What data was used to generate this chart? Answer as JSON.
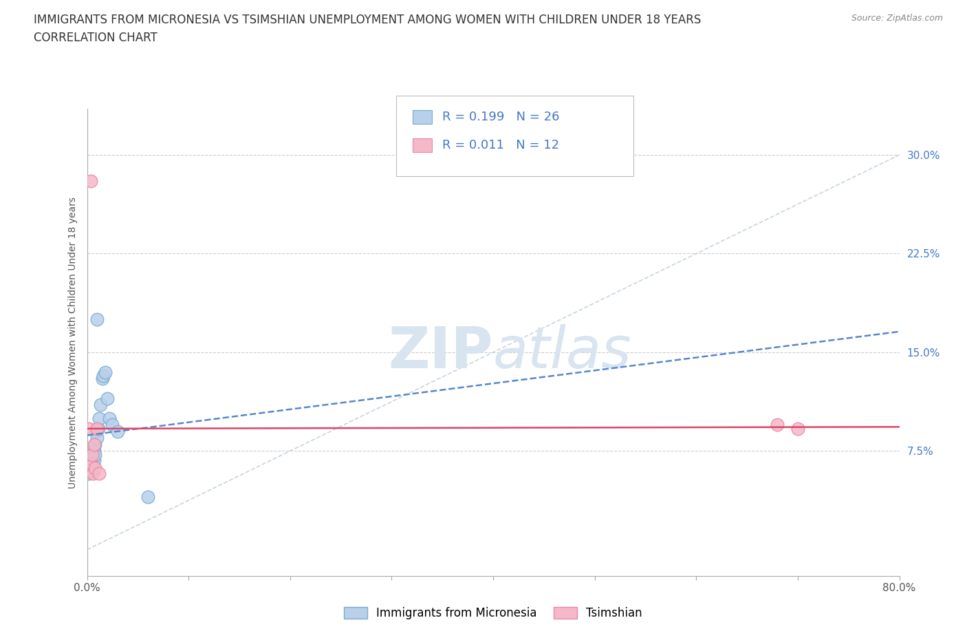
{
  "title_line1": "IMMIGRANTS FROM MICRONESIA VS TSIMSHIAN UNEMPLOYMENT AMONG WOMEN WITH CHILDREN UNDER 18 YEARS",
  "title_line2": "CORRELATION CHART",
  "source_text": "Source: ZipAtlas.com",
  "ylabel": "Unemployment Among Women with Children Under 18 years",
  "xlim": [
    0.0,
    0.8
  ],
  "ylim": [
    -0.02,
    0.335
  ],
  "ytick_vals": [
    0.075,
    0.15,
    0.225,
    0.3
  ],
  "ytick_labels": [
    "7.5%",
    "15.0%",
    "22.5%",
    "30.0%"
  ],
  "xtick_vals": [
    0.0,
    0.1,
    0.2,
    0.3,
    0.4,
    0.5,
    0.6,
    0.7,
    0.8
  ],
  "xtick_labels": [
    "0.0%",
    "",
    "",
    "",
    "",
    "",
    "",
    "",
    "80.0%"
  ],
  "blue_face": "#b8d0ea",
  "blue_edge": "#7aaad0",
  "pink_face": "#f5b8c8",
  "pink_edge": "#e888a0",
  "trend_blue": "#5588cc",
  "trend_pink": "#dd4466",
  "diag_color": "#c8d4e0",
  "watermark": "#d8e4f0",
  "legend_R_blue": "R = 0.199",
  "legend_N_blue": "N = 26",
  "legend_R_pink": "R = 0.011",
  "legend_N_pink": "N = 12",
  "legend_label_blue": "Immigrants from Micronesia",
  "legend_label_pink": "Tsimshian",
  "blue_x": [
    0.002,
    0.003,
    0.004,
    0.004,
    0.005,
    0.005,
    0.006,
    0.006,
    0.007,
    0.007,
    0.008,
    0.008,
    0.009,
    0.01,
    0.011,
    0.012,
    0.013,
    0.015,
    0.016,
    0.018,
    0.02,
    0.022,
    0.025,
    0.03,
    0.01,
    0.06
  ],
  "blue_y": [
    0.058,
    0.062,
    0.06,
    0.065,
    0.063,
    0.067,
    0.065,
    0.07,
    0.068,
    0.075,
    0.072,
    0.08,
    0.09,
    0.085,
    0.092,
    0.1,
    0.11,
    0.13,
    0.132,
    0.135,
    0.115,
    0.1,
    0.095,
    0.09,
    0.175,
    0.04
  ],
  "pink_x": [
    0.002,
    0.003,
    0.004,
    0.005,
    0.006,
    0.007,
    0.008,
    0.01,
    0.012,
    0.68,
    0.7,
    0.004
  ],
  "pink_y": [
    0.092,
    0.06,
    0.065,
    0.072,
    0.058,
    0.08,
    0.062,
    0.092,
    0.058,
    0.095,
    0.092,
    0.28
  ],
  "title_fontsize": 12,
  "axis_label_fontsize": 10,
  "tick_fontsize": 11,
  "legend_fontsize": 13
}
